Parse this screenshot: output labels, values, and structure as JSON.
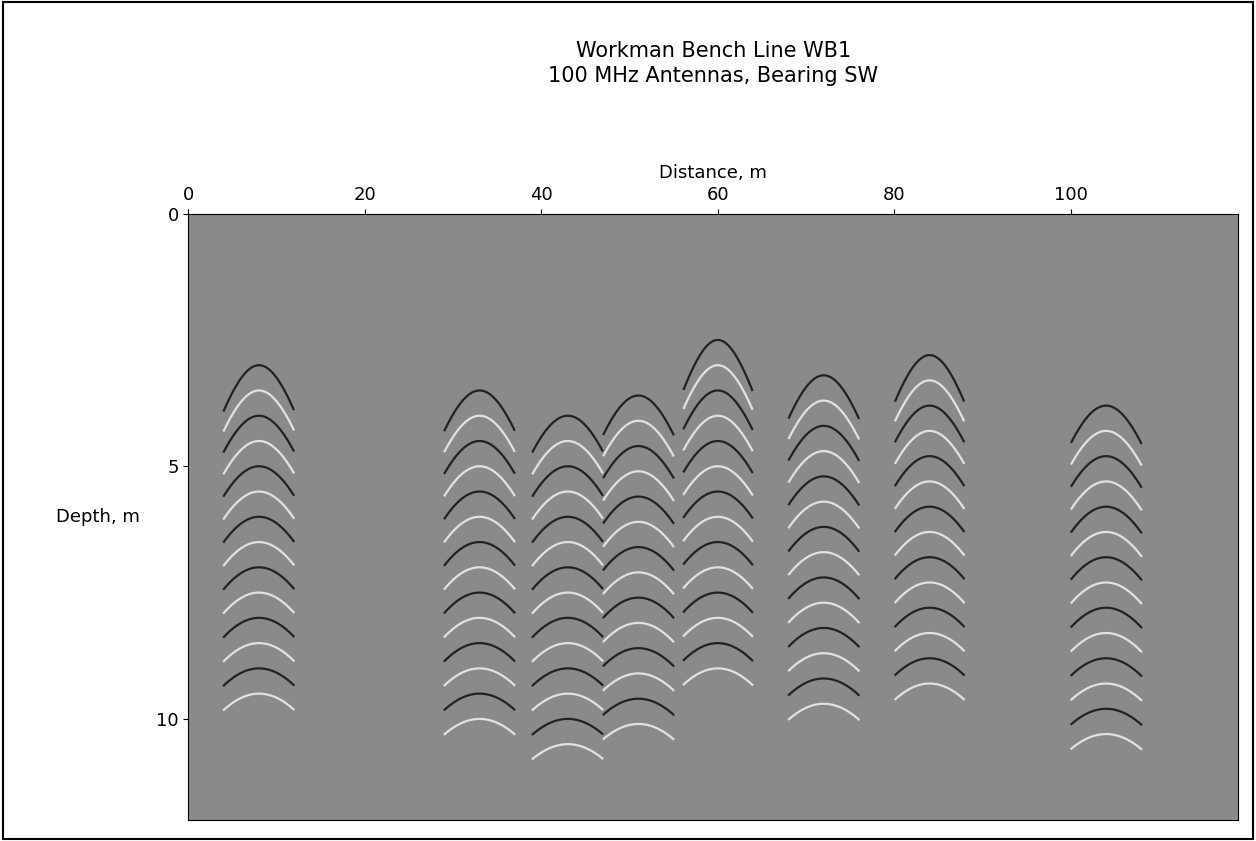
{
  "chart_data": {
    "type": "radargram",
    "title": "Workman Bench Line WB1\n100 MHz Antennas, Bearing SW",
    "x_label": "Distance, m",
    "y_label": "Depth, m",
    "xlim": [
      0,
      119
    ],
    "xticks": [
      0,
      20,
      40,
      60,
      80,
      100
    ],
    "ylim": [
      12,
      0
    ],
    "yticks": [
      0,
      5,
      10
    ],
    "reflections": [
      {
        "x": 8,
        "depth": 3.0
      },
      {
        "x": 33,
        "depth": 3.5
      },
      {
        "x": 43,
        "depth": 4.0
      },
      {
        "x": 51,
        "depth": 3.6
      },
      {
        "x": 60,
        "depth": 2.5
      },
      {
        "x": 72,
        "depth": 3.2
      },
      {
        "x": 84,
        "depth": 2.8
      },
      {
        "x": 104,
        "depth": 3.8
      }
    ]
  }
}
